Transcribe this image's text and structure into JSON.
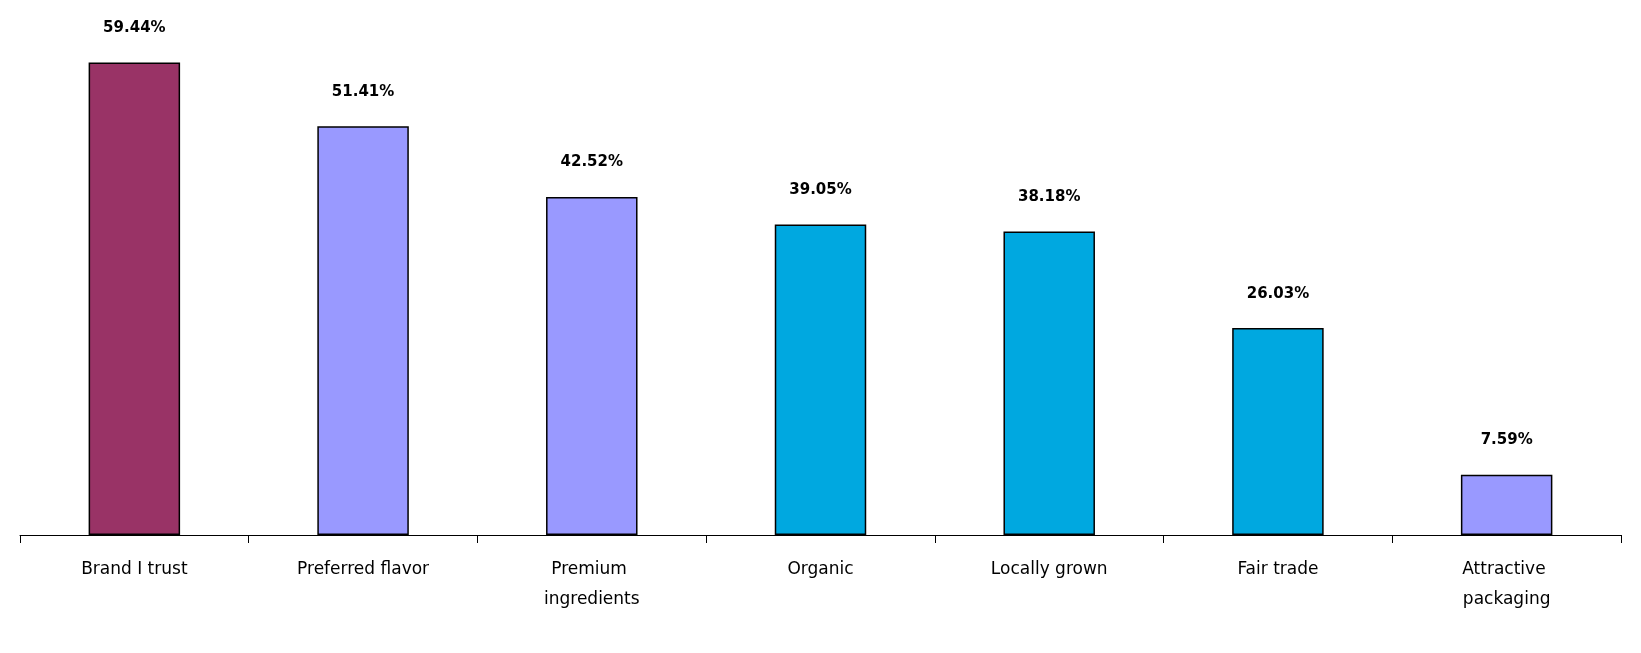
{
  "chart_data": {
    "type": "bar",
    "categories": [
      "Brand I trust",
      "Preferred flavor",
      "Premium ingredients",
      "Organic",
      "Locally grown",
      "Fair trade",
      "Attractive packaging"
    ],
    "values": [
      59.44,
      51.41,
      42.52,
      39.05,
      38.18,
      26.03,
      7.59
    ],
    "colors": [
      "#993366",
      "#9999ff",
      "#9999ff",
      "#00a8e0",
      "#00a8e0",
      "#00a8e0",
      "#9999ff"
    ],
    "value_labels": [
      "59.44%",
      "51.41%",
      "42.52%",
      "39.05%",
      "38.18%",
      "26.03%",
      "7.59%"
    ]
  }
}
